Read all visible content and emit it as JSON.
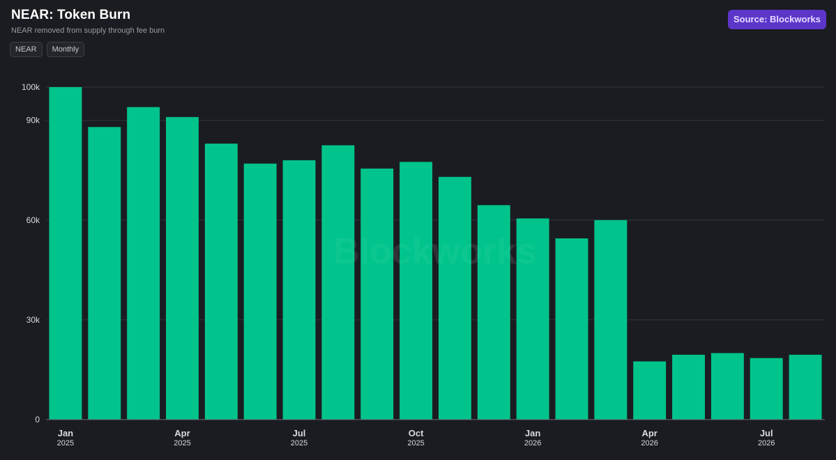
{
  "header": {
    "title": "NEAR: Token Burn",
    "subtitle": "NEAR removed from supply through fee burn",
    "tags": [
      "NEAR",
      "Monthly"
    ],
    "source_label": "Source: Blockworks"
  },
  "watermark": "Blockworks",
  "colors": {
    "background": "#1b1c21",
    "bar": "#00c48c",
    "grid": "#34353c",
    "source_badge": "#5b36c9"
  },
  "chart_data": {
    "type": "bar",
    "title": "NEAR: Token Burn",
    "subtitle": "NEAR removed from supply through fee burn",
    "categories": [
      "2025-01",
      "2025-02",
      "2025-03",
      "2025-04",
      "2025-05",
      "2025-06",
      "2025-07",
      "2025-08",
      "2025-09",
      "2025-10",
      "2025-11",
      "2025-12",
      "2026-01",
      "2026-02",
      "2026-03",
      "2026-04",
      "2026-05",
      "2026-06",
      "2026-07",
      "2026-08"
    ],
    "values": [
      100000,
      88000,
      94000,
      91000,
      83000,
      77000,
      78000,
      82500,
      75500,
      77500,
      73000,
      64500,
      60500,
      54500,
      60000,
      17500,
      19500,
      20000,
      18500,
      19500
    ],
    "x_tick_labels": [
      {
        "index": 0,
        "month": "Jan",
        "year": "2025"
      },
      {
        "index": 3,
        "month": "Apr",
        "year": "2025"
      },
      {
        "index": 6,
        "month": "Jul",
        "year": "2025"
      },
      {
        "index": 9,
        "month": "Oct",
        "year": "2025"
      },
      {
        "index": 12,
        "month": "Jan",
        "year": "2026"
      },
      {
        "index": 15,
        "month": "Apr",
        "year": "2026"
      },
      {
        "index": 18,
        "month": "Jul",
        "year": "2026"
      }
    ],
    "y_ticks": [
      0,
      30000,
      60000,
      90000,
      100000
    ],
    "y_tick_labels": [
      "0",
      "30k",
      "60k",
      "90k",
      "100k"
    ],
    "ylim": [
      0,
      100000
    ],
    "xlabel": "",
    "ylabel": "",
    "grid": true,
    "legend": "none"
  }
}
